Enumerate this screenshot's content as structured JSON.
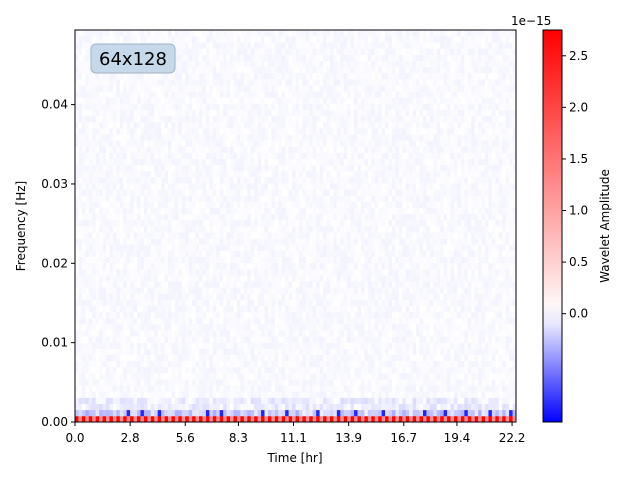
{
  "chart_data": {
    "type": "heatmap",
    "annotation": "64x128",
    "xlabel": "Time [hr]",
    "ylabel": "Frequency [Hz]",
    "xlim": [
      0,
      22.4
    ],
    "ylim": [
      0,
      0.0494
    ],
    "x_ticks": [
      "0.0",
      "2.8",
      "5.6",
      "8.3",
      "11.1",
      "13.9",
      "16.7",
      "19.4",
      "22.2"
    ],
    "x_tick_values": [
      0.0,
      2.8,
      5.6,
      8.3,
      11.1,
      13.9,
      16.7,
      19.4,
      22.2
    ],
    "y_ticks": [
      "0.00",
      "0.01",
      "0.02",
      "0.03",
      "0.04"
    ],
    "y_tick_values": [
      0.0,
      0.01,
      0.02,
      0.03,
      0.04
    ],
    "grid": {
      "rows": 64,
      "cols": 128
    },
    "colorbar": {
      "label": "Wavelet Amplitude",
      "exponent_label": "1e−15",
      "min": -1.05,
      "max": 2.75,
      "colormap": "bwr",
      "tick_labels": [
        "0.0",
        "0.5",
        "1.0",
        "1.5",
        "2.0",
        "2.5"
      ],
      "tick_values": [
        0.0,
        0.5,
        1.0,
        1.5,
        2.0,
        2.5
      ]
    },
    "features": {
      "lowest_band_values": [
        2.7,
        1.2
      ],
      "second_band_negative_times_hr": [
        2.65,
        3.35,
        4.2,
        6.6,
        7.3,
        9.5,
        10.6,
        12.2,
        13.3,
        14.2,
        15.6,
        17.6,
        18.7,
        19.7,
        21.0,
        22.1
      ],
      "second_band_negative_value": -0.9,
      "background_value": -0.05
    }
  }
}
